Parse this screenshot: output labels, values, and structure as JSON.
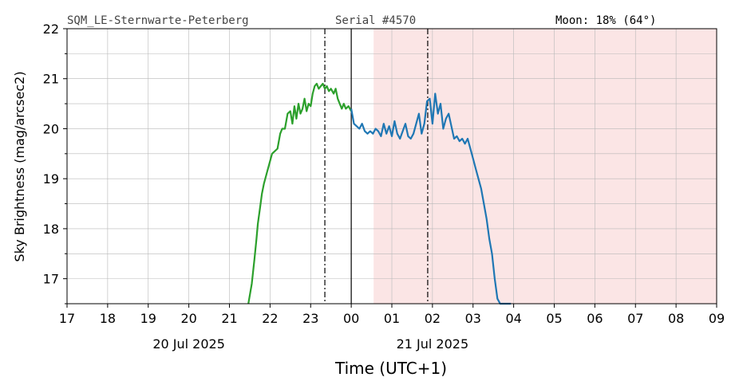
{
  "header": {
    "station": "SQM_LE-Sternwarte-Peterberg",
    "serial": "Serial #4570",
    "moon": "Moon: 18% (64°)"
  },
  "chart_data": {
    "type": "line",
    "title": "",
    "ylabel": "Sky Brightness (mag/arcsec2)",
    "xlabel": "Time (UTC+1)",
    "ylim": [
      16.5,
      22
    ],
    "xlim": [
      "2025-07-20 17:00",
      "2025-07-21 09:00"
    ],
    "y_ticks": [
      "17",
      "18",
      "19",
      "20",
      "21",
      "22"
    ],
    "x_ticks": [
      "17",
      "18",
      "19",
      "20",
      "21",
      "22",
      "23",
      "00",
      "01",
      "02",
      "03",
      "04",
      "05",
      "06",
      "07",
      "08",
      "09"
    ],
    "date_labels": [
      {
        "text": "20 Jul 2025",
        "under": "20:00"
      },
      {
        "text": "21 Jul 2025",
        "under": "02:00"
      }
    ],
    "grid": true,
    "shaded_region": {
      "from": "2025-07-21 00:33",
      "to": "2025-07-21 09:00",
      "color": "#fbe5e5"
    },
    "vlines": [
      {
        "x": "2025-07-20 23:21",
        "style": "dashdot"
      },
      {
        "x": "2025-07-21 00:00",
        "style": "solid"
      },
      {
        "x": "2025-07-21 01:53",
        "style": "dashdot"
      }
    ],
    "series": [
      {
        "color": "#2ca02c",
        "x": [
          "2025-07-20 21:28",
          "2025-07-20 21:33",
          "2025-07-20 21:37",
          "2025-07-20 21:40",
          "2025-07-20 21:42",
          "2025-07-20 21:45",
          "2025-07-20 21:48",
          "2025-07-20 21:51",
          "2025-07-20 21:55",
          "2025-07-20 21:59",
          "2025-07-20 22:03",
          "2025-07-20 22:07",
          "2025-07-20 22:11",
          "2025-07-20 22:15",
          "2025-07-20 22:18",
          "2025-07-20 22:22",
          "2025-07-20 22:26",
          "2025-07-20 22:30",
          "2025-07-20 22:33",
          "2025-07-20 22:36",
          "2025-07-20 22:39",
          "2025-07-20 22:42",
          "2025-07-20 22:45",
          "2025-07-20 22:48",
          "2025-07-20 22:51",
          "2025-07-20 22:54",
          "2025-07-20 22:57",
          "2025-07-20 23:00",
          "2025-07-20 23:03",
          "2025-07-20 23:06",
          "2025-07-20 23:09",
          "2025-07-20 23:12",
          "2025-07-20 23:15",
          "2025-07-20 23:18",
          "2025-07-20 23:21",
          "2025-07-20 23:24",
          "2025-07-20 23:27",
          "2025-07-20 23:30",
          "2025-07-20 23:34",
          "2025-07-20 23:37",
          "2025-07-20 23:40",
          "2025-07-20 23:43",
          "2025-07-20 23:46",
          "2025-07-20 23:49",
          "2025-07-20 23:52",
          "2025-07-20 23:56",
          "2025-07-21 00:00"
        ],
        "y": [
          16.5,
          16.9,
          17.4,
          17.8,
          18.1,
          18.4,
          18.7,
          18.9,
          19.1,
          19.3,
          19.5,
          19.55,
          19.6,
          19.9,
          20.0,
          20.0,
          20.3,
          20.35,
          20.1,
          20.45,
          20.2,
          20.5,
          20.3,
          20.4,
          20.6,
          20.35,
          20.5,
          20.45,
          20.7,
          20.85,
          20.9,
          20.8,
          20.85,
          20.9,
          20.8,
          20.85,
          20.75,
          20.8,
          20.7,
          20.8,
          20.6,
          20.5,
          20.4,
          20.5,
          20.4,
          20.45,
          20.35
        ]
      },
      {
        "color": "#1f77b4",
        "x": [
          "2025-07-21 00:00",
          "2025-07-21 00:04",
          "2025-07-21 00:08",
          "2025-07-21 00:12",
          "2025-07-21 00:16",
          "2025-07-21 00:20",
          "2025-07-21 00:24",
          "2025-07-21 00:28",
          "2025-07-21 00:32",
          "2025-07-21 00:36",
          "2025-07-21 00:40",
          "2025-07-21 00:44",
          "2025-07-21 00:48",
          "2025-07-21 00:52",
          "2025-07-21 00:56",
          "2025-07-21 01:00",
          "2025-07-21 01:04",
          "2025-07-21 01:08",
          "2025-07-21 01:12",
          "2025-07-21 01:16",
          "2025-07-21 01:20",
          "2025-07-21 01:24",
          "2025-07-21 01:28",
          "2025-07-21 01:32",
          "2025-07-21 01:36",
          "2025-07-21 01:40",
          "2025-07-21 01:44",
          "2025-07-21 01:48",
          "2025-07-21 01:52",
          "2025-07-21 01:56",
          "2025-07-21 02:00",
          "2025-07-21 02:04",
          "2025-07-21 02:08",
          "2025-07-21 02:12",
          "2025-07-21 02:16",
          "2025-07-21 02:20",
          "2025-07-21 02:24",
          "2025-07-21 02:28",
          "2025-07-21 02:32",
          "2025-07-21 02:36",
          "2025-07-21 02:40",
          "2025-07-21 02:44",
          "2025-07-21 02:48",
          "2025-07-21 02:52",
          "2025-07-21 02:56",
          "2025-07-21 03:00",
          "2025-07-21 03:04",
          "2025-07-21 03:08",
          "2025-07-21 03:12",
          "2025-07-21 03:16",
          "2025-07-21 03:20",
          "2025-07-21 03:24",
          "2025-07-21 03:28",
          "2025-07-21 03:32",
          "2025-07-21 03:36",
          "2025-07-21 03:40",
          "2025-07-21 03:44",
          "2025-07-21 03:48",
          "2025-07-21 03:52",
          "2025-07-21 03:56"
        ],
        "y": [
          20.4,
          20.1,
          20.05,
          20.0,
          20.1,
          19.95,
          19.9,
          19.95,
          19.9,
          20.0,
          19.95,
          19.85,
          20.1,
          19.9,
          20.05,
          19.85,
          20.15,
          19.9,
          19.8,
          19.95,
          20.1,
          19.85,
          19.8,
          19.9,
          20.1,
          20.3,
          19.9,
          20.1,
          20.55,
          20.6,
          20.1,
          20.7,
          20.3,
          20.5,
          20.0,
          20.2,
          20.3,
          20.05,
          19.8,
          19.85,
          19.75,
          19.8,
          19.7,
          19.8,
          19.6,
          19.4,
          19.2,
          19.0,
          18.8,
          18.5,
          18.2,
          17.8,
          17.5,
          17.0,
          16.6,
          16.5,
          16.5,
          16.5,
          16.5,
          16.5
        ]
      }
    ]
  }
}
